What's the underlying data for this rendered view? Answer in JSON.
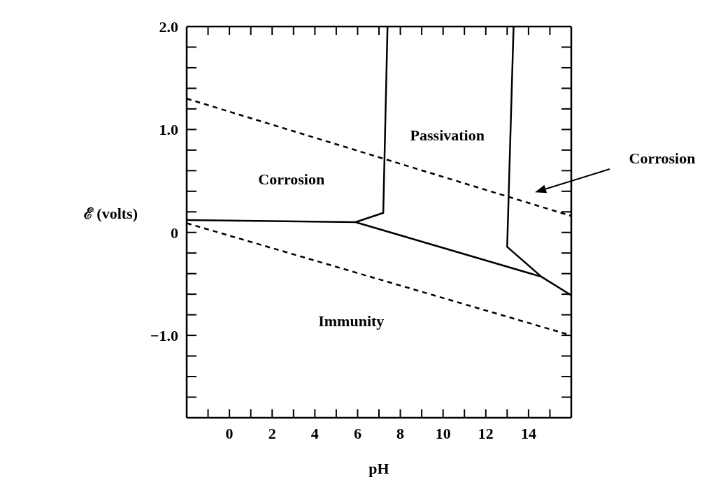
{
  "chart_data": {
    "type": "line",
    "xlabel": "pH",
    "ylabel": "ℰ (volts)",
    "marker": "none",
    "xlim": [
      -2,
      16
    ],
    "xticks": [
      {
        "value": -2,
        "label": null
      },
      {
        "value": -1,
        "label": null
      },
      0,
      {
        "value": 1,
        "label": null
      },
      2,
      {
        "value": 3,
        "label": null
      },
      4,
      {
        "value": 5,
        "label": null
      },
      6,
      {
        "value": 7,
        "label": null
      },
      8,
      {
        "value": 9,
        "label": null
      },
      10,
      {
        "value": 11,
        "label": null
      },
      12,
      {
        "value": 13,
        "label": null
      },
      14,
      {
        "value": 15,
        "label": null
      },
      {
        "value": 16,
        "label": null
      }
    ],
    "ylim": [
      -1.8,
      2.0
    ],
    "yticks": [
      {
        "value": -1.8,
        "label": null
      },
      {
        "value": -1.6,
        "label": null
      },
      {
        "value": -1.4,
        "label": null
      },
      {
        "value": -1.2,
        "label": null
      },
      {
        "value": -1,
        "label": "−1.0"
      },
      {
        "value": -0.8,
        "label": null
      },
      {
        "value": -0.6,
        "label": null
      },
      {
        "value": -0.4,
        "label": null
      },
      {
        "value": -0.2,
        "label": null
      },
      0,
      {
        "value": 0.2,
        "label": null
      },
      {
        "value": 0.4,
        "label": null
      },
      {
        "value": 0.6,
        "label": null
      },
      {
        "value": 0.8,
        "label": null
      },
      {
        "value": 1,
        "label": "1.0"
      },
      {
        "value": 1.2,
        "label": null
      },
      {
        "value": 1.4,
        "label": null
      },
      {
        "value": 1.6,
        "label": null
      },
      {
        "value": 1.8,
        "label": null
      },
      {
        "value": 2,
        "label": "2.0"
      }
    ],
    "series": [
      {
        "color": "#000000",
        "line_style": "dashed",
        "x": [
          -2,
          16
        ],
        "values": [
          1.3,
          0.16
        ]
      },
      {
        "color": "#000000",
        "line_style": "dashed",
        "x": [
          -2,
          16
        ],
        "values": [
          0.09,
          -1.0
        ]
      },
      {
        "color": "#000000",
        "line_style": "solid",
        "x": [
          -2,
          5.9,
          14.6,
          16
        ],
        "values": [
          0.12,
          0.1,
          -0.43,
          -0.61
        ]
      },
      {
        "color": "#000000",
        "line_style": "solid",
        "x": [
          5.9,
          7.2,
          7.4
        ],
        "values": [
          0.1,
          0.19,
          2.0
        ]
      },
      {
        "color": "#000000",
        "line_style": "solid",
        "x": [
          13.3,
          13.0,
          14.6
        ],
        "values": [
          2.0,
          -0.14,
          -0.43
        ]
      }
    ],
    "annotations": [
      "Corrosion",
      "Passivation",
      "Immunity",
      "Corrosion"
    ]
  }
}
